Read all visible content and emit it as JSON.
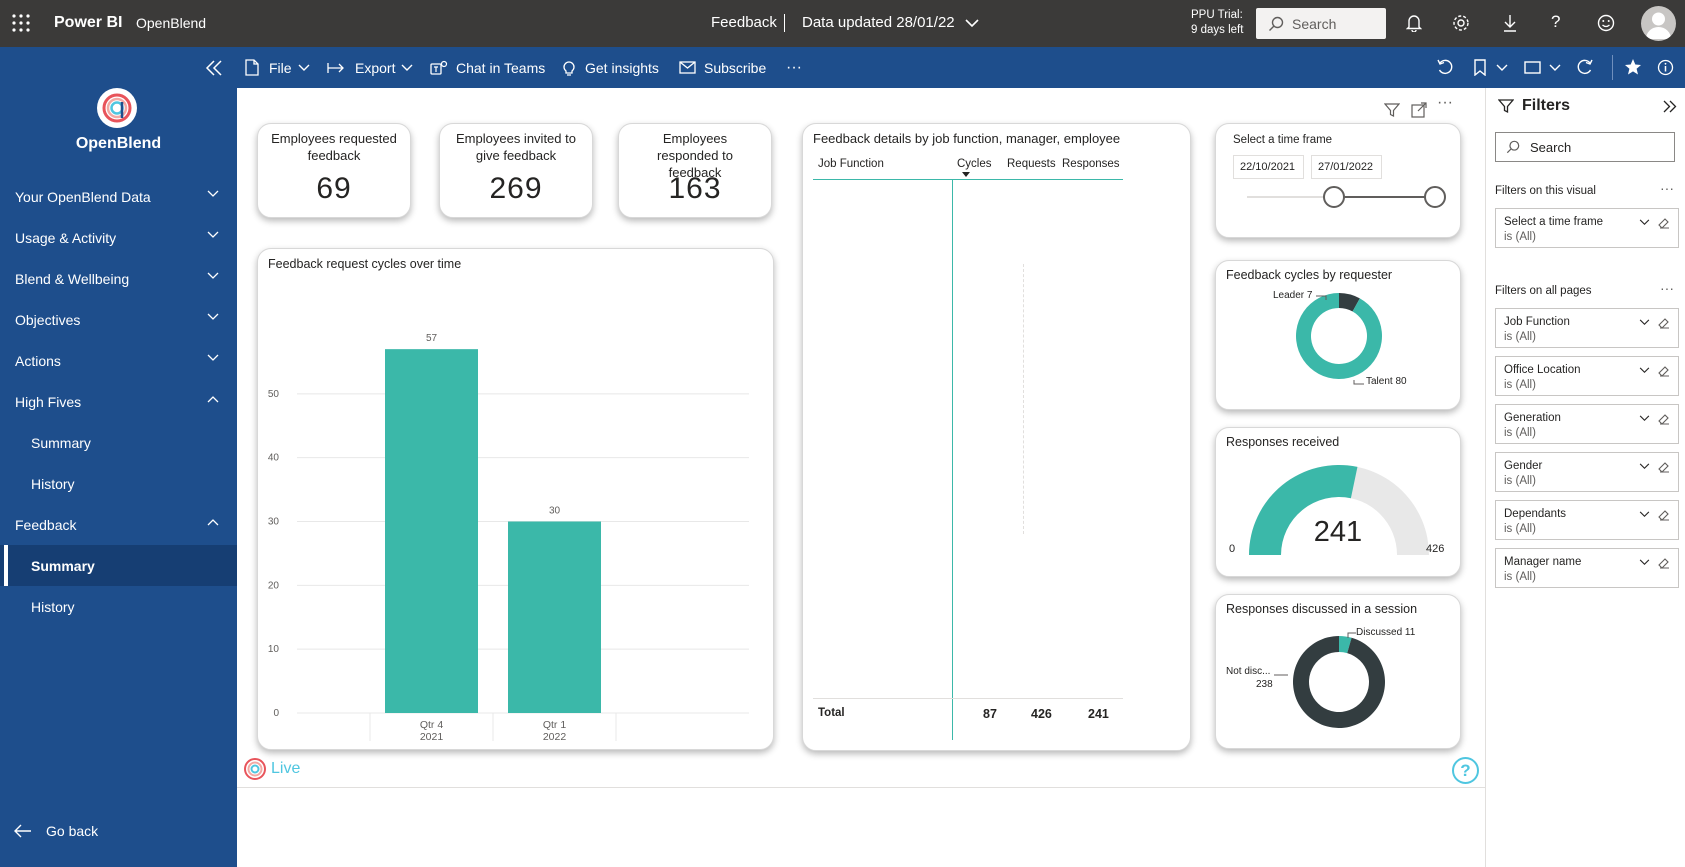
{
  "app": {
    "brand": "Power BI",
    "workspace": "OpenBlend",
    "report_name": "Feedback",
    "data_updated": "Data updated 28/01/22",
    "trial_line1": "PPU Trial:",
    "trial_line2": "9 days left",
    "search_placeholder": "Search"
  },
  "commandbar": {
    "file": "File",
    "export": "Export",
    "chat": "Chat in Teams",
    "insights": "Get insights",
    "subscribe": "Subscribe",
    "more": "···"
  },
  "sidebar": {
    "org_name": "OpenBlend",
    "items": [
      {
        "label": "Your OpenBlend Data"
      },
      {
        "label": "Usage & Activity"
      },
      {
        "label": "Blend & Wellbeing"
      },
      {
        "label": "Objectives"
      },
      {
        "label": "Actions"
      },
      {
        "label": "High Fives"
      },
      {
        "label": "Summary"
      },
      {
        "label": "History"
      },
      {
        "label": "Feedback"
      },
      {
        "label": "Summary"
      },
      {
        "label": "History"
      }
    ],
    "go_back": "Go back"
  },
  "kpis": [
    {
      "label": "Employees requested feedback",
      "value": "69"
    },
    {
      "label": "Employees invited to give feedback",
      "value": "269"
    },
    {
      "label": "Employees responded to feedback",
      "value": "163"
    }
  ],
  "bar_chart": {
    "title": "Feedback request cycles over time",
    "chart_data": {
      "type": "bar",
      "categories": [
        "Qtr 4 2021",
        "Qtr 1 2022"
      ],
      "cat_line1": [
        "Qtr 4",
        "Qtr 1"
      ],
      "cat_line2": [
        "2021",
        "2022"
      ],
      "values": [
        57,
        30
      ],
      "yticks": [
        0,
        10,
        20,
        30,
        40,
        50
      ],
      "ylim": [
        0,
        60
      ],
      "color": "#3bb8a9"
    }
  },
  "table": {
    "title": "Feedback details by job function, manager, employee",
    "columns": [
      "Job Function",
      "Cycles",
      "Requests",
      "Responses"
    ],
    "total_label": "Total",
    "totals": [
      "87",
      "426",
      "241"
    ]
  },
  "timeframe": {
    "title": "Select a time frame",
    "start": "22/10/2021",
    "end": "27/01/2022"
  },
  "donut_requester": {
    "title": "Feedback cycles by requester",
    "chart_data": {
      "type": "pie",
      "labels": [
        "Leader",
        "Talent"
      ],
      "values": [
        7,
        80
      ],
      "colors": [
        "#333d40",
        "#3bb8a9"
      ],
      "label_texts": [
        "Leader 7",
        "Talent 80"
      ]
    }
  },
  "gauge": {
    "title": "Responses received",
    "chart_data": {
      "type": "gauge",
      "value": 241,
      "min": 0,
      "max": 426
    },
    "value_text": "241",
    "min_text": "0",
    "max_text": "426"
  },
  "donut_discussed": {
    "title": "Responses discussed in a session",
    "chart_data": {
      "type": "pie",
      "labels": [
        "Discussed",
        "Not discussed"
      ],
      "values": [
        11,
        238
      ],
      "colors": [
        "#3bb8a9",
        "#333d40"
      ]
    },
    "label_discussed": "Discussed 11",
    "label_not_line1": "Not disc...",
    "label_not_line2": "238"
  },
  "live_label": "Live",
  "filters": {
    "title": "Filters",
    "search_placeholder": "Search",
    "on_visual_header": "Filters on this visual",
    "on_all_header": "Filters on all pages",
    "visual_filters": [
      {
        "name": "Select a time frame",
        "state": "is (All)"
      }
    ],
    "page_filters": [
      {
        "name": "Job Function",
        "state": "is (All)"
      },
      {
        "name": "Office Location",
        "state": "is (All)"
      },
      {
        "name": "Generation",
        "state": "is (All)"
      },
      {
        "name": "Gender",
        "state": "is (All)"
      },
      {
        "name": "Dependants",
        "state": "is (All)"
      },
      {
        "name": "Manager name",
        "state": "is (All)"
      }
    ]
  }
}
